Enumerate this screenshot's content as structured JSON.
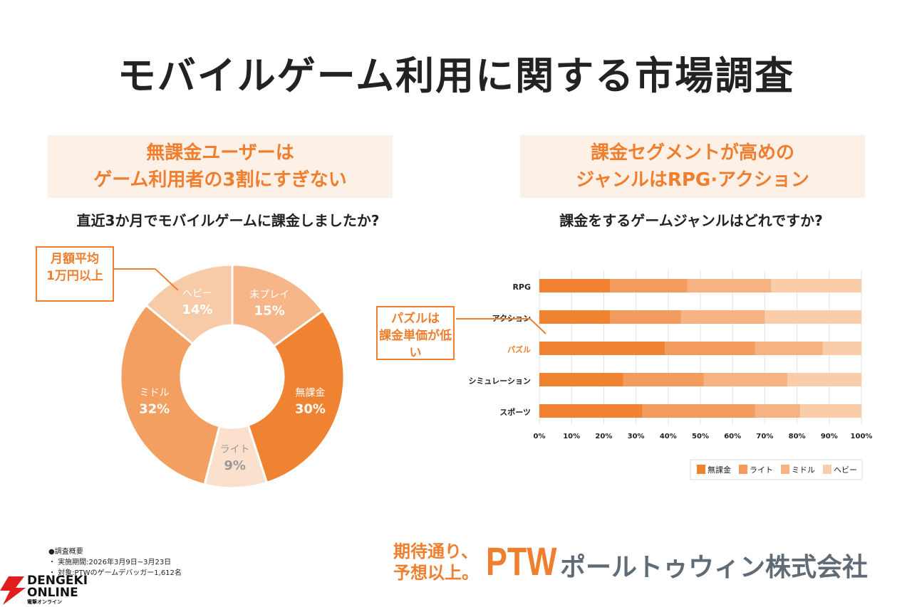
{
  "title": "モバイルゲーム利用に関する市場調査",
  "left": {
    "headline_1": "無課金ユーザーは",
    "headline_2": "ゲーム利用者の3割にすぎない",
    "question": "直近3か月でモバイルゲームに課金しましたか?",
    "callout_1": "月額平均",
    "callout_2": "1万円以上"
  },
  "right": {
    "headline_1": "課金セグメントが高めの",
    "headline_2": "ジャンルはRPG·アクション",
    "question": "課金をするゲームジャンルはどれですか?",
    "callout_1": "パズルは",
    "callout_2": "課金単価が低い"
  },
  "chart_data": [
    {
      "type": "pie",
      "donut": true,
      "slices": [
        {
          "label": "未プレイ",
          "value": 15,
          "value_label": "15%",
          "color": "#f6b68a"
        },
        {
          "label": "無課金",
          "value": 30,
          "value_label": "30%",
          "color": "#f08332"
        },
        {
          "label": "ライト",
          "value": 9,
          "value_label": "9%",
          "color": "#fbe1cd"
        },
        {
          "label": "ミドル",
          "value": 32,
          "value_label": "32%",
          "color": "#f39f62"
        },
        {
          "label": "ヘビー",
          "value": 14,
          "value_label": "14%",
          "color": "#f8cba8"
        }
      ]
    },
    {
      "type": "bar",
      "orientation": "horizontal",
      "stacked": true,
      "xlim": [
        0,
        100
      ],
      "categories": [
        "RPG",
        "アクション",
        "パズル",
        "シミュレーション",
        "スポーツ"
      ],
      "ticks": [
        "0%",
        "10%",
        "20%",
        "30%",
        "40%",
        "50%",
        "60%",
        "70%",
        "80%",
        "90%",
        "100%"
      ],
      "series": [
        {
          "name": "無課金",
          "values": [
            22,
            22,
            39,
            26,
            32
          ],
          "color": "#f08332"
        },
        {
          "name": "ライト",
          "values": [
            24,
            22,
            28,
            25,
            35
          ],
          "color": "#f39b5c"
        },
        {
          "name": "ミドル",
          "values": [
            26,
            26,
            21,
            26,
            14
          ],
          "color": "#f6b283"
        },
        {
          "name": "ヘビー",
          "values": [
            28,
            30,
            12,
            23,
            19
          ],
          "color": "#f9cda9"
        }
      ],
      "legend": "bottom-right",
      "grid": true,
      "highlight_category": "パズル"
    }
  ],
  "footer": {
    "heading": "●調査概要",
    "line1": "・ 実施期間:2026年3月9日~3月23日",
    "line2": "・ 対象:PTWのゲームデバッガー1,612名",
    "slogan_1": "期待通り、",
    "slogan_2": "予想以上。",
    "brand": "PTW",
    "company": "ポールトゥウィン株式会社",
    "watermark_1": "DENGEKI",
    "watermark_2": "ONLINE",
    "watermark_3": "電撃オンライン"
  }
}
